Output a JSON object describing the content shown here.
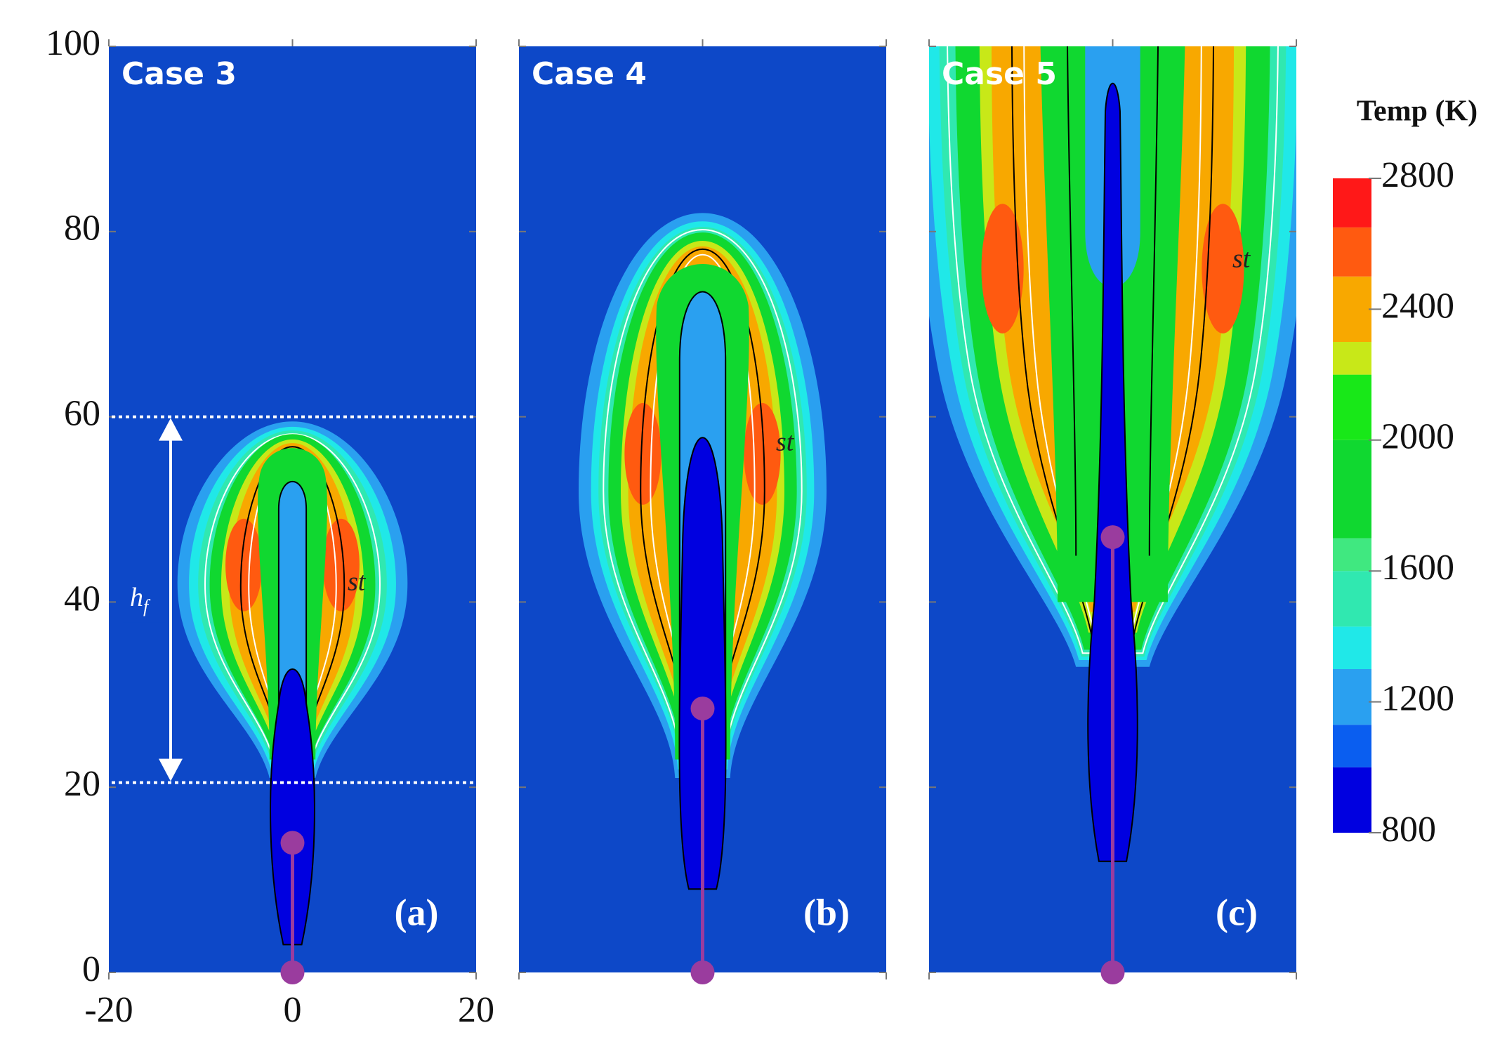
{
  "chart_data": {
    "type": "contour",
    "xlim": [
      -20,
      20
    ],
    "ylim": [
      0,
      100
    ],
    "xticks": [
      -20,
      0,
      20
    ],
    "yticks": [
      0,
      20,
      40,
      60,
      80,
      100
    ],
    "background": "#0d48c8",
    "marker_color": "#9a3c9e",
    "panels": [
      {
        "title": "Case 3",
        "label": "(a)",
        "markers": [
          0,
          14
        ],
        "contour_label": "st"
      },
      {
        "title": "Case 4",
        "label": "(b)",
        "markers": [
          0,
          28.5
        ],
        "contour_label": "st"
      },
      {
        "title": "Case 5",
        "label": "(c)",
        "markers": [
          0,
          47
        ],
        "contour_label": "st"
      }
    ],
    "flame_height": {
      "label": "h",
      "subscript": "f",
      "range": [
        20.5,
        60
      ]
    },
    "colorbar": {
      "title": "Temp (K)",
      "lim": [
        800,
        2800
      ],
      "ticks": [
        800,
        1200,
        1600,
        2000,
        2400,
        2800
      ],
      "levels": [
        800,
        1000,
        1130,
        1300,
        1430,
        1600,
        1700,
        2000,
        2200,
        2300,
        2500,
        2650,
        2800
      ],
      "colors": [
        "#0000e0",
        "#0a5ef0",
        "#2aa0f0",
        "#20e8e8",
        "#30e8b0",
        "#40e880",
        "#10d830",
        "#18e818",
        "#c8e818",
        "#f8a800",
        "#ff5a10",
        "#ff1818"
      ]
    }
  }
}
